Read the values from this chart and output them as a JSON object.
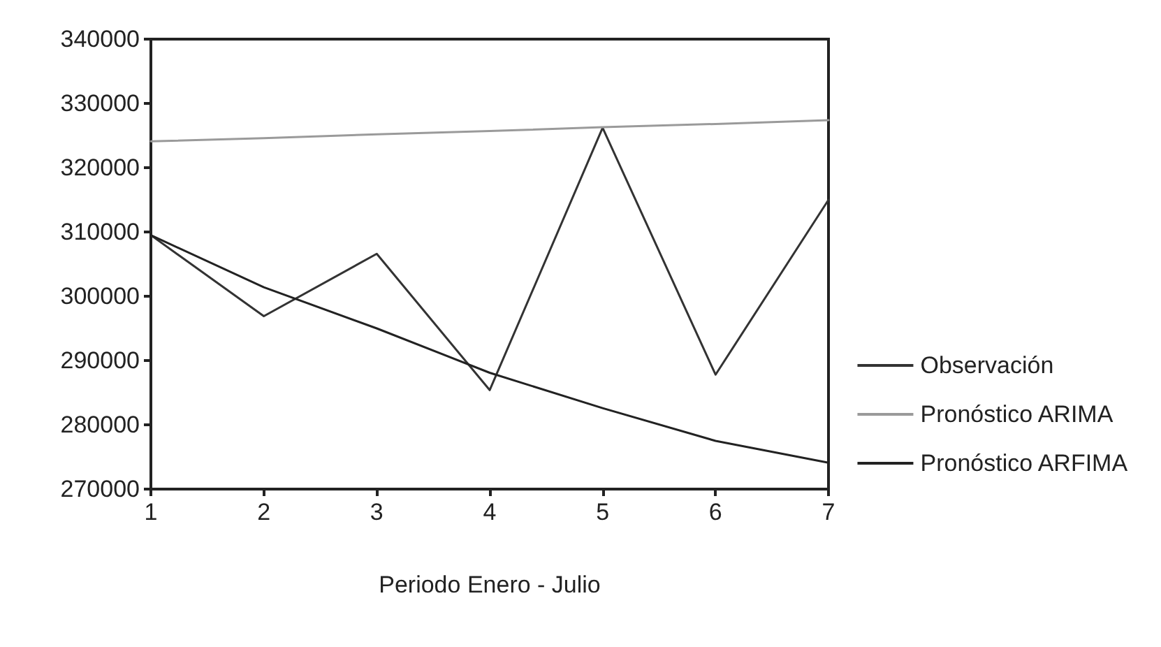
{
  "chart_data": {
    "type": "line",
    "xlabel": "Periodo Enero - Julio",
    "x": [
      1,
      2,
      3,
      4,
      5,
      6,
      7
    ],
    "xlim": [
      1,
      7
    ],
    "xticks": [
      1,
      2,
      3,
      4,
      5,
      6,
      7
    ],
    "ylim": [
      270000,
      340000
    ],
    "yticks": [
      270000,
      280000,
      290000,
      300000,
      310000,
      320000,
      330000,
      340000
    ],
    "grid": false,
    "legend": "right",
    "marker": "none",
    "line_style": "solid",
    "series": [
      {
        "name": "Observación",
        "color": "#333333",
        "values": [
          309500,
          296900,
          306600,
          285400,
          326200,
          287800,
          315000
        ]
      },
      {
        "name": "Pronóstico ARIMA",
        "color": "#9a9a9a",
        "values": [
          324100,
          324600,
          325200,
          325700,
          326300,
          326800,
          327400
        ]
      },
      {
        "name": "Pronóstico ARFIMA",
        "color": "#222222",
        "values": [
          309500,
          301400,
          295000,
          288100,
          282600,
          277500,
          274100
        ]
      }
    ]
  }
}
